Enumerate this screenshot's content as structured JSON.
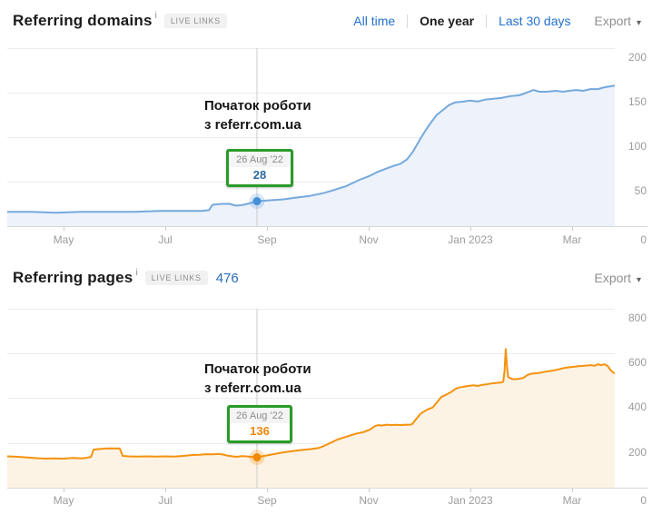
{
  "page": {
    "background": "#ffffff"
  },
  "toolbar": {
    "filters": [
      {
        "label": "All time",
        "active": false
      },
      {
        "label": "One year",
        "active": true
      },
      {
        "label": "Last 30 days",
        "active": false
      }
    ],
    "export_label": "Export"
  },
  "annotation": {
    "line1": "Початок роботи",
    "line2": "з referr.com.ua"
  },
  "charts": [
    {
      "title": "Referring domains",
      "info_icon": "i",
      "badge": "LIVE LINKS",
      "export_label": "Export",
      "tooltip": {
        "date": "26 Aug '22",
        "value": "28"
      },
      "y_ticks": [
        "200",
        "150",
        "100",
        "50",
        "0"
      ],
      "x_ticks": [
        "May",
        "Jul",
        "Sep",
        "Nov",
        "Jan 2023",
        "Mar"
      ],
      "line_color": "#74a9dc",
      "fill_color": "#edf2fb",
      "dot_color": "#4390d7",
      "marker_line_color": "#cccccc",
      "chart_data": {
        "type": "area",
        "title": "Referring domains",
        "x_range": "Apr 2022 - Mar 2023 (one year)",
        "x_unit": "fraction of displayed year",
        "ylim": [
          0,
          200
        ],
        "grid": true,
        "legend": "none",
        "marker": {
          "x": 0.411,
          "date": "26 Aug '22",
          "value": 28
        },
        "points": [
          [
            0,
            16
          ],
          [
            0.04,
            16
          ],
          [
            0.08,
            15
          ],
          [
            0.12,
            16
          ],
          [
            0.16,
            16
          ],
          [
            0.21,
            16
          ],
          [
            0.25,
            17
          ],
          [
            0.29,
            17
          ],
          [
            0.32,
            17
          ],
          [
            0.332,
            18
          ],
          [
            0.338,
            24
          ],
          [
            0.353,
            25
          ],
          [
            0.366,
            25
          ],
          [
            0.377,
            23
          ],
          [
            0.389,
            24
          ],
          [
            0.401,
            26
          ],
          [
            0.411,
            28
          ],
          [
            0.43,
            29
          ],
          [
            0.453,
            30
          ],
          [
            0.475,
            32
          ],
          [
            0.498,
            34
          ],
          [
            0.52,
            37
          ],
          [
            0.535,
            40
          ],
          [
            0.558,
            45
          ],
          [
            0.58,
            52
          ],
          [
            0.595,
            56
          ],
          [
            0.61,
            61
          ],
          [
            0.625,
            65
          ],
          [
            0.637,
            68
          ],
          [
            0.647,
            70
          ],
          [
            0.658,
            75
          ],
          [
            0.668,
            84
          ],
          [
            0.679,
            97
          ],
          [
            0.688,
            107
          ],
          [
            0.698,
            117
          ],
          [
            0.707,
            125
          ],
          [
            0.718,
            131
          ],
          [
            0.727,
            136
          ],
          [
            0.737,
            139
          ],
          [
            0.752,
            140
          ],
          [
            0.762,
            141
          ],
          [
            0.774,
            140
          ],
          [
            0.786,
            142
          ],
          [
            0.798,
            143
          ],
          [
            0.813,
            144
          ],
          [
            0.828,
            146
          ],
          [
            0.843,
            147
          ],
          [
            0.855,
            150
          ],
          [
            0.866,
            153
          ],
          [
            0.876,
            151
          ],
          [
            0.888,
            151
          ],
          [
            0.903,
            152
          ],
          [
            0.915,
            151
          ],
          [
            0.925,
            152
          ],
          [
            0.936,
            153
          ],
          [
            0.948,
            152
          ],
          [
            0.96,
            154
          ],
          [
            0.972,
            154
          ],
          [
            0.983,
            156
          ],
          [
            1,
            158
          ]
        ]
      }
    },
    {
      "title": "Referring pages",
      "info_icon": "i",
      "badge": "LIVE LINKS",
      "count": "476",
      "export_label": "Export",
      "tooltip": {
        "date": "26 Aug '22",
        "value": "136"
      },
      "y_ticks": [
        "800",
        "600",
        "400",
        "200",
        "0"
      ],
      "x_ticks": [
        "May",
        "Jul",
        "Sep",
        "Nov",
        "Jan 2023",
        "Mar"
      ],
      "line_color": "#f5920d",
      "fill_color": "#fdf3e5",
      "dot_color": "#f28a00",
      "marker_line_color": "#cccccc",
      "chart_data": {
        "type": "area",
        "title": "Referring pages",
        "x_range": "Apr 2022 - Mar 2023 (one year)",
        "x_unit": "fraction of displayed year",
        "ylim": [
          0,
          800
        ],
        "grid": true,
        "legend": "none",
        "marker": {
          "x": 0.411,
          "date": "26 Aug '22",
          "value": 136
        },
        "points": [
          [
            0,
            140
          ],
          [
            0.018,
            138
          ],
          [
            0.033,
            135
          ],
          [
            0.048,
            132
          ],
          [
            0.063,
            130
          ],
          [
            0.078,
            131
          ],
          [
            0.093,
            130
          ],
          [
            0.108,
            133
          ],
          [
            0.123,
            131
          ],
          [
            0.132,
            134
          ],
          [
            0.138,
            138
          ],
          [
            0.142,
            170
          ],
          [
            0.152,
            173
          ],
          [
            0.161,
            175
          ],
          [
            0.17,
            176
          ],
          [
            0.179,
            175
          ],
          [
            0.185,
            176
          ],
          [
            0.19,
            142
          ],
          [
            0.2,
            140
          ],
          [
            0.215,
            139
          ],
          [
            0.23,
            140
          ],
          [
            0.245,
            139
          ],
          [
            0.26,
            140
          ],
          [
            0.275,
            139
          ],
          [
            0.29,
            142
          ],
          [
            0.305,
            146
          ],
          [
            0.317,
            147
          ],
          [
            0.327,
            150
          ],
          [
            0.339,
            149
          ],
          [
            0.348,
            151
          ],
          [
            0.356,
            148
          ],
          [
            0.363,
            143
          ],
          [
            0.371,
            140
          ],
          [
            0.378,
            138
          ],
          [
            0.386,
            141
          ],
          [
            0.393,
            140
          ],
          [
            0.401,
            138
          ],
          [
            0.411,
            136
          ],
          [
            0.423,
            142
          ],
          [
            0.431,
            146
          ],
          [
            0.438,
            150
          ],
          [
            0.453,
            157
          ],
          [
            0.468,
            163
          ],
          [
            0.483,
            168
          ],
          [
            0.498,
            172
          ],
          [
            0.513,
            178
          ],
          [
            0.52,
            185
          ],
          [
            0.528,
            195
          ],
          [
            0.543,
            215
          ],
          [
            0.558,
            228
          ],
          [
            0.572,
            240
          ],
          [
            0.587,
            249
          ],
          [
            0.598,
            261
          ],
          [
            0.605,
            275
          ],
          [
            0.611,
            280
          ],
          [
            0.617,
            278
          ],
          [
            0.625,
            282
          ],
          [
            0.632,
            280
          ],
          [
            0.64,
            281
          ],
          [
            0.647,
            280
          ],
          [
            0.655,
            282
          ],
          [
            0.662,
            281
          ],
          [
            0.667,
            285
          ],
          [
            0.671,
            300
          ],
          [
            0.676,
            316
          ],
          [
            0.68,
            330
          ],
          [
            0.685,
            339
          ],
          [
            0.692,
            350
          ],
          [
            0.7,
            358
          ],
          [
            0.707,
            380
          ],
          [
            0.714,
            405
          ],
          [
            0.722,
            415
          ],
          [
            0.729,
            425
          ],
          [
            0.737,
            440
          ],
          [
            0.744,
            448
          ],
          [
            0.752,
            452
          ],
          [
            0.759,
            455
          ],
          [
            0.767,
            458
          ],
          [
            0.774,
            455
          ],
          [
            0.782,
            460
          ],
          [
            0.789,
            462
          ],
          [
            0.797,
            466
          ],
          [
            0.804,
            468
          ],
          [
            0.812,
            470
          ],
          [
            0.8165,
            474
          ],
          [
            0.8185,
            520
          ],
          [
            0.8205,
            620
          ],
          [
            0.8225,
            545
          ],
          [
            0.8245,
            495
          ],
          [
            0.83,
            487
          ],
          [
            0.834,
            485
          ],
          [
            0.842,
            487
          ],
          [
            0.849,
            490
          ],
          [
            0.857,
            505
          ],
          [
            0.864,
            510
          ],
          [
            0.872,
            512
          ],
          [
            0.879,
            515
          ],
          [
            0.886,
            519
          ],
          [
            0.894,
            522
          ],
          [
            0.901,
            525
          ],
          [
            0.909,
            530
          ],
          [
            0.916,
            535
          ],
          [
            0.924,
            538
          ],
          [
            0.931,
            540
          ],
          [
            0.939,
            543
          ],
          [
            0.946,
            544
          ],
          [
            0.954,
            546
          ],
          [
            0.961,
            548
          ],
          [
            0.967,
            545
          ],
          [
            0.972,
            552
          ],
          [
            0.978,
            548
          ],
          [
            0.983,
            552
          ],
          [
            0.988,
            545
          ],
          [
            0.992,
            530
          ],
          [
            0.997,
            515
          ],
          [
            1,
            512
          ]
        ]
      }
    }
  ]
}
